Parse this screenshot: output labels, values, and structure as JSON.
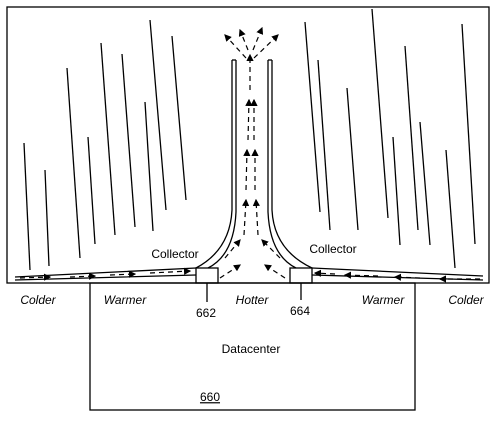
{
  "labels": {
    "collector_left": "Collector",
    "collector_right": "Collector",
    "zones": [
      "Colder",
      "Warmer",
      "Hotter",
      "Warmer",
      "Colder"
    ],
    "block_left": "662",
    "block_right": "664",
    "datacenter": "Datacenter",
    "datacenter_ref": "660"
  }
}
